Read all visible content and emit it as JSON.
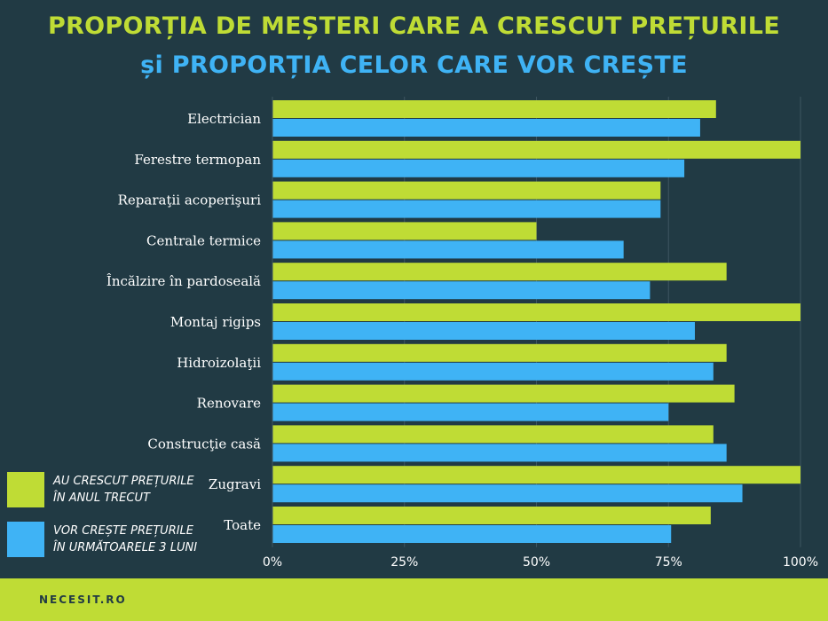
{
  "title": {
    "line1": "PROPORȚIA DE MEȘTERI CARE A CRESCUT PREȚURILE",
    "line2": "și PROPORȚIA CELOR CARE VOR CREȘTE"
  },
  "colors": {
    "background": "#213a44",
    "green": "#bfdc35",
    "blue": "#3fb3f5",
    "label": "#ffffff",
    "grid": "#3d5560"
  },
  "legend": {
    "green_line1": "AU CRESCUT PREȚURILE",
    "green_line2": "ÎN ANUL TRECUT",
    "blue_line1": "VOR CREȘTE PREȚURILE",
    "blue_line2": "ÎN URMĂTOARELE 3 LUNI"
  },
  "footer": {
    "brand": "NECESIT.RO"
  },
  "chart_data": {
    "type": "bar",
    "orientation": "horizontal",
    "categories": [
      "Electrician",
      "Ferestre termopan",
      "Reparaţii acoperişuri",
      "Centrale termice",
      "Încălzire în pardoseală",
      "Montaj rigips",
      "Hidroizolaţii",
      "Renovare",
      "Construcţie casă",
      "Zugravi",
      "Toate"
    ],
    "series": [
      {
        "name": "AU CRESCUT PREȚURILE ÎN ANUL TRECUT",
        "color": "#bfdc35",
        "values": [
          84,
          100,
          73.5,
          50,
          86,
          100,
          86,
          87.5,
          83.5,
          100,
          83
        ]
      },
      {
        "name": "VOR CREȘTE PREȚURILE ÎN URMĂTOARELE 3 LUNI",
        "color": "#3fb3f5",
        "values": [
          81,
          78,
          73.5,
          66.5,
          71.5,
          80,
          83.5,
          75,
          86,
          89,
          75.5
        ]
      }
    ],
    "xlim": [
      0,
      100
    ],
    "xticks": [
      "0%",
      "25%",
      "50%",
      "75%",
      "100%"
    ],
    "grid": true,
    "legend_position": "bottom-left"
  }
}
